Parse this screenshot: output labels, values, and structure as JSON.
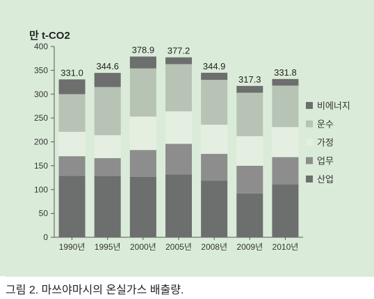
{
  "chart_data": {
    "type": "bar",
    "stacked": true,
    "ylabel": "만 t-CO2",
    "ylim": [
      0,
      400
    ],
    "yticks": [
      0,
      50,
      100,
      150,
      200,
      250,
      300,
      350,
      400
    ],
    "categories": [
      "1990년",
      "1995년",
      "2000년",
      "2005년",
      "2008년",
      "2009년",
      "2010년"
    ],
    "totals": [
      "331.0",
      "344.6",
      "378.9",
      "377.2",
      "344.9",
      "317.3",
      "331.8"
    ],
    "series": [
      {
        "name": "산업",
        "color": "#6d6e6e",
        "values": [
          129,
          128,
          127,
          132,
          119,
          92,
          111
        ]
      },
      {
        "name": "업무",
        "color": "#8c8d8c",
        "values": [
          41,
          38,
          56,
          64,
          56,
          58,
          57
        ]
      },
      {
        "name": "가정",
        "color": "#e4efe1",
        "values": [
          51,
          48,
          70,
          68,
          61,
          62,
          63
        ]
      },
      {
        "name": "운수",
        "color": "#b6c3b5",
        "values": [
          79,
          101,
          101,
          99,
          94,
          91,
          87
        ]
      },
      {
        "name": "비에너지",
        "color": "#6d6e6e",
        "values": [
          31.0,
          29.6,
          24.9,
          14.2,
          14.9,
          14.3,
          13.8
        ]
      }
    ],
    "legend_position": "right",
    "grid": false
  },
  "caption": "그림 2. 마쓰야마시의 온실가스 배출량."
}
